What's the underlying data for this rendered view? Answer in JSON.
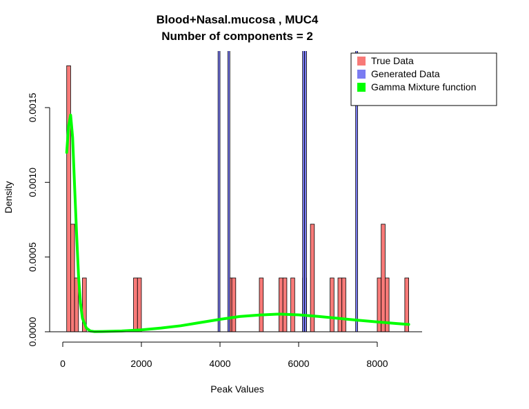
{
  "chart_data": {
    "type": "histogram",
    "title_line1": "Blood+Nasal.mucosa , MUC4",
    "title_line2": "Number of components =  2",
    "xlabel": "Peak Values",
    "ylabel": "Density",
    "xlim": [
      0,
      9000
    ],
    "ylim": [
      0,
      0.0018
    ],
    "x_ticks": [
      {
        "value": 0,
        "label": "0"
      },
      {
        "value": 2000,
        "label": "2000"
      },
      {
        "value": 4000,
        "label": "4000"
      },
      {
        "value": 6000,
        "label": "6000"
      },
      {
        "value": 8000,
        "label": "8000"
      }
    ],
    "y_ticks": [
      {
        "value": 0,
        "label": "0.0000"
      },
      {
        "value": 0.0005,
        "label": "0.0005"
      },
      {
        "value": 0.001,
        "label": "0.0010"
      },
      {
        "value": 0.0015,
        "label": "0.0015"
      }
    ],
    "bin_width": 100,
    "legend": {
      "position": "top-right",
      "entries": [
        {
          "label": "True Data",
          "color": "#f87a78"
        },
        {
          "label": "Generated Data",
          "color": "#7b7cf2"
        },
        {
          "label": "Gamma Mixture function",
          "color": "#00ff00"
        }
      ]
    },
    "series": [
      {
        "name": "True Data",
        "color": "#f87a78",
        "bins": [
          {
            "x0": 100,
            "density": 0.00178
          },
          {
            "x0": 200,
            "density": 0.00072
          },
          {
            "x0": 300,
            "density": 0.00036
          },
          {
            "x0": 500,
            "density": 0.00036
          },
          {
            "x0": 1800,
            "density": 0.00036
          },
          {
            "x0": 1900,
            "density": 0.00036
          },
          {
            "x0": 4200,
            "density": 0.00036
          },
          {
            "x0": 4300,
            "density": 0.00036
          },
          {
            "x0": 5000,
            "density": 0.00036
          },
          {
            "x0": 5500,
            "density": 0.00036
          },
          {
            "x0": 5600,
            "density": 0.00036
          },
          {
            "x0": 5800,
            "density": 0.00036
          },
          {
            "x0": 6100,
            "density": 0.00036
          },
          {
            "x0": 6300,
            "density": 0.00072
          },
          {
            "x0": 6800,
            "density": 0.00036
          },
          {
            "x0": 7000,
            "density": 0.00036
          },
          {
            "x0": 7100,
            "density": 0.00036
          },
          {
            "x0": 8000,
            "density": 0.00036
          },
          {
            "x0": 8100,
            "density": 0.00072
          },
          {
            "x0": 8200,
            "density": 0.00036
          },
          {
            "x0": 8700,
            "density": 0.00036
          }
        ]
      },
      {
        "name": "Generated Data",
        "color": "#7b7cf2",
        "bins": [
          {
            "x0": 3950,
            "density": 0.0075
          },
          {
            "x0": 4200,
            "density": 0.0075
          },
          {
            "x0": 6100,
            "density": 0.0075
          },
          {
            "x0": 6150,
            "density": 0.0075
          },
          {
            "x0": 7450,
            "density": 0.0075
          }
        ],
        "bin_width": 50
      },
      {
        "name": "Gamma Mixture function",
        "color": "#00ff00",
        "type": "line",
        "x": [
          100,
          150,
          200,
          250,
          300,
          350,
          400,
          450,
          500,
          600,
          700,
          800,
          1000,
          1500,
          2000,
          2500,
          3000,
          3500,
          4000,
          4500,
          5000,
          5500,
          6000,
          6500,
          7000,
          7500,
          8000,
          8500,
          8800
        ],
        "y": [
          0.0012,
          0.00138,
          0.00145,
          0.0013,
          0.00098,
          0.00066,
          0.00038,
          0.00019,
          9e-05,
          2.5e-05,
          5e-06,
          1.5e-06,
          2e-06,
          5e-06,
          1.3e-05,
          2.5e-05,
          4e-05,
          6.2e-05,
          8.3e-05,
          0.000102,
          0.000112,
          0.000118,
          0.000113,
          0.000103,
          9e-05,
          7.7e-05,
          6.6e-05,
          5.5e-05,
          4.9e-05
        ]
      }
    ]
  }
}
